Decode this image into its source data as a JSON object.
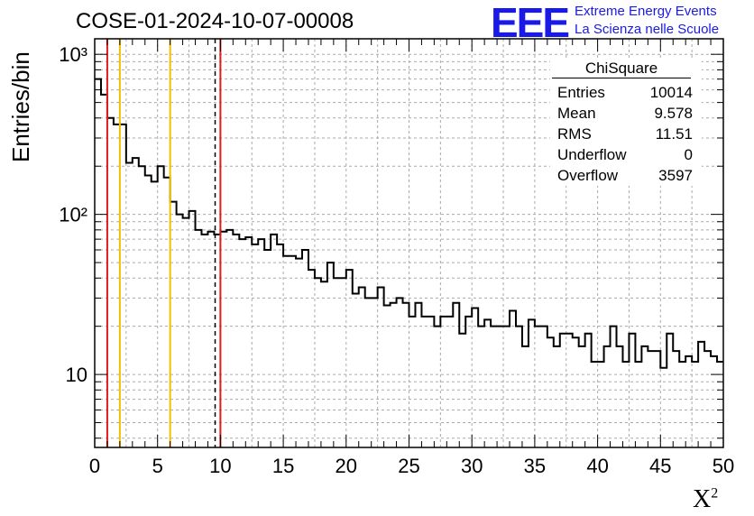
{
  "header": {
    "title": "COSE-01-2024-10-07-00008",
    "logo_text": "EEE",
    "logo_line1": "Extreme Energy Events",
    "logo_line2": "La Scienza nelle Scuole"
  },
  "stats_box": {
    "name": "ChiSquare",
    "rows": [
      {
        "label": "Entries",
        "value": "10014"
      },
      {
        "label": "Mean",
        "value": "9.578"
      },
      {
        "label": "RMS",
        "value": "11.51"
      },
      {
        "label": "Underflow",
        "value": "0"
      },
      {
        "label": "Overflow",
        "value": "3597"
      }
    ]
  },
  "chart_data": {
    "type": "histogram",
    "title": "COSE-01-2024-10-07-00008",
    "xlabel": "X²",
    "ylabel": "Entries/bin",
    "xlim": [
      0,
      50
    ],
    "ylim": [
      3.5,
      1250
    ],
    "ylog": true,
    "grid": true,
    "bin_width": 0.5,
    "x_ticks": [
      0,
      5,
      10,
      15,
      20,
      25,
      30,
      35,
      40,
      45,
      50
    ],
    "y_tick_labels": [
      "10",
      "10²",
      "10³"
    ],
    "y_tick_values": [
      10,
      100,
      1000
    ],
    "values": [
      700,
      560,
      400,
      365,
      365,
      210,
      225,
      200,
      175,
      160,
      200,
      170,
      120,
      100,
      95,
      105,
      80,
      75,
      78,
      75,
      78,
      80,
      75,
      70,
      72,
      65,
      70,
      60,
      75,
      65,
      55,
      55,
      53,
      60,
      45,
      40,
      38,
      50,
      40,
      40,
      45,
      32,
      35,
      30,
      30,
      35,
      27,
      28,
      30,
      28,
      23,
      28,
      23,
      23,
      20,
      23,
      23,
      28,
      18,
      23,
      26,
      20,
      22,
      20,
      20,
      20,
      25,
      20,
      15,
      22,
      20,
      20,
      17,
      15,
      18,
      18,
      17,
      15,
      18,
      12,
      12,
      15,
      20,
      15,
      12,
      18,
      12,
      15,
      14,
      14,
      11,
      18,
      14,
      12,
      13,
      12,
      16,
      14,
      13,
      12
    ],
    "vertical_lines": [
      {
        "x": 1,
        "color": "#e01c1c",
        "style": "solid"
      },
      {
        "x": 2,
        "color": "#f0c000",
        "style": "solid"
      },
      {
        "x": 6,
        "color": "#f0c000",
        "style": "solid"
      },
      {
        "x": 9.578,
        "color": "#000000",
        "style": "dashed"
      },
      {
        "x": 10,
        "color": "#e01c1c",
        "style": "solid"
      }
    ]
  }
}
